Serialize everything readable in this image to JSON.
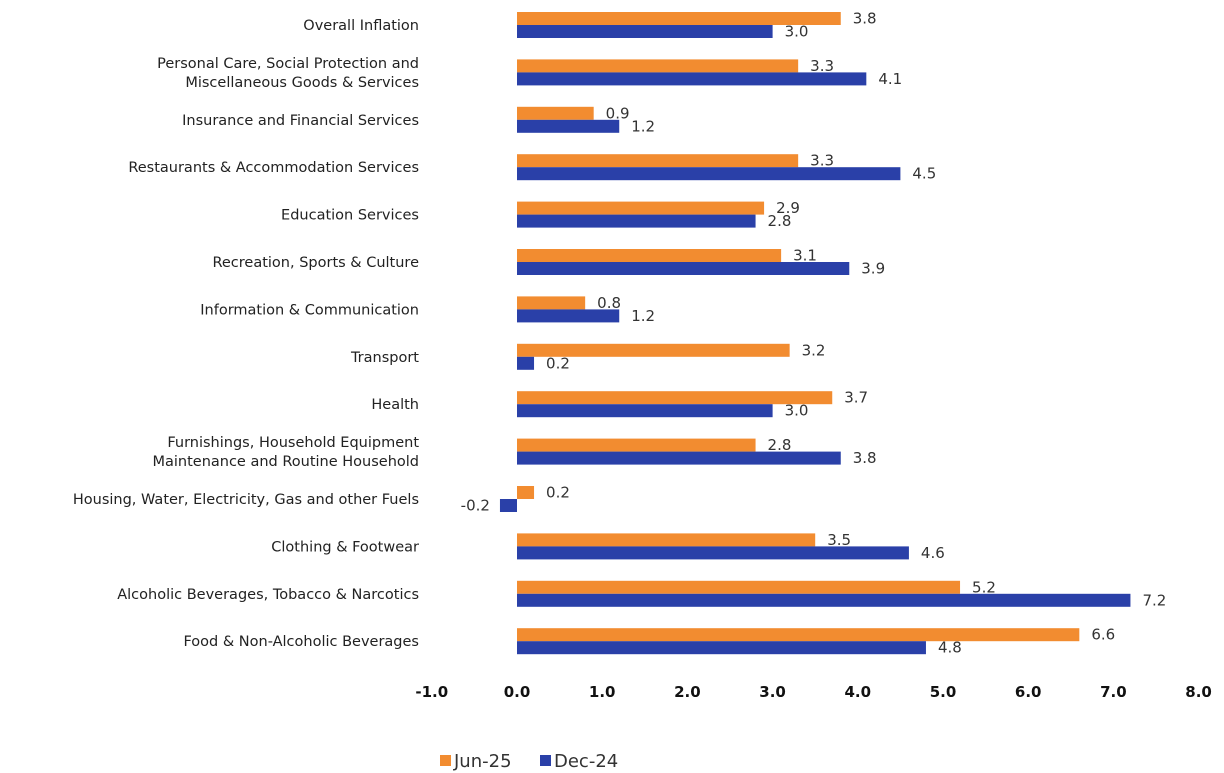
{
  "chart_data": {
    "type": "bar",
    "orientation": "horizontal",
    "title": "",
    "xlabel": "",
    "ylabel": "",
    "xlim": [
      -1.0,
      8.0
    ],
    "ticks": [
      -1.0,
      0.0,
      1.0,
      2.0,
      3.0,
      4.0,
      5.0,
      6.0,
      7.0,
      8.0
    ],
    "tick_labels": [
      "-1.0",
      "0.0",
      "1.0",
      "2.0",
      "3.0",
      "4.0",
      "5.0",
      "6.0",
      "7.0",
      "8.0"
    ],
    "grid": false,
    "legend_position": "bottom",
    "categories": [
      [
        "Overall Inflation"
      ],
      [
        "Personal Care, Social Protection and",
        "Miscellaneous Goods & Services"
      ],
      [
        "Insurance and Financial Services"
      ],
      [
        "Restaurants & Accommodation Services"
      ],
      [
        "Education Services"
      ],
      [
        "Recreation, Sports & Culture"
      ],
      [
        "Information & Communication"
      ],
      [
        "Transport"
      ],
      [
        "Health"
      ],
      [
        "Furnishings, Household Equipment",
        "Maintenance and Routine Household"
      ],
      [
        "Housing, Water, Electricity, Gas and other Fuels"
      ],
      [
        "Clothing & Footwear"
      ],
      [
        "Alcoholic Beverages, Tobacco & Narcotics"
      ],
      [
        "Food & Non-Alcoholic Beverages"
      ]
    ],
    "series": [
      {
        "name": "Jun-25",
        "color": "#F28C30",
        "values": [
          3.8,
          3.3,
          0.9,
          3.3,
          2.9,
          3.1,
          0.8,
          3.2,
          3.7,
          2.8,
          0.2,
          3.5,
          5.2,
          6.6
        ],
        "labels": [
          "3.8",
          "3.3",
          "0.9",
          "3.3",
          "2.9",
          "3.1",
          "0.8",
          "3.2",
          "3.7",
          "2.8",
          "0.2",
          "3.5",
          "5.2",
          "6.6"
        ]
      },
      {
        "name": "Dec-24",
        "color": "#2A40A8",
        "values": [
          3.0,
          4.1,
          1.2,
          4.5,
          2.8,
          3.9,
          1.2,
          0.2,
          3.0,
          3.8,
          -0.2,
          4.6,
          7.2,
          4.8
        ],
        "labels": [
          "3.0",
          "4.1",
          "1.2",
          "4.5",
          "2.8",
          "3.9",
          "1.2",
          "0.2",
          "3.0",
          "3.8",
          "-0.2",
          "4.6",
          "7.2",
          "4.8"
        ]
      }
    ]
  }
}
